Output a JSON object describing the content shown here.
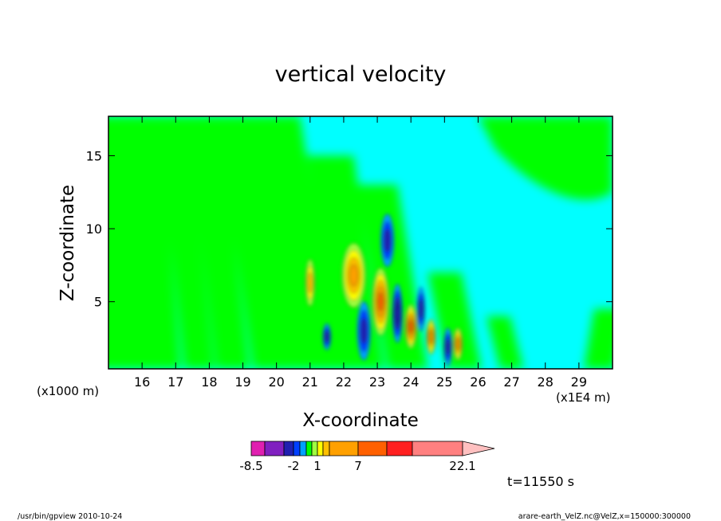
{
  "chart_data": {
    "type": "heatmap",
    "title": "vertical velocity",
    "xlabel": "X-coordinate",
    "ylabel": "Z-coordinate",
    "x_unit_label": "(x1E4 m)",
    "y_unit_label": "(x1000 m)",
    "xlim": [
      15.0,
      30.0
    ],
    "ylim": [
      0.4,
      17.7
    ],
    "x_ticks": [
      16,
      17,
      18,
      19,
      20,
      21,
      22,
      23,
      24,
      25,
      26,
      27,
      28,
      29
    ],
    "y_ticks": [
      5,
      10,
      15
    ],
    "colorbar": {
      "levels": [
        -8.5,
        -6.0,
        -4.0,
        -2.0,
        -1.0,
        -0.5,
        0.5,
        1.0,
        2.0,
        3.0,
        7.0,
        11.0,
        15.0,
        22.1
      ],
      "tick_labels": [
        "-8.5",
        "-2",
        "1",
        "7",
        "22.1"
      ],
      "tick_values": [
        -8.5,
        -2.0,
        1.0,
        7.0,
        22.1
      ],
      "colors": [
        "#e020b0",
        "#8020c0",
        "#2020b0",
        "#0040ff",
        "#00a0ff",
        "#00ff00",
        "#a0ff40",
        "#ffff00",
        "#ffc000",
        "#ffa000",
        "#ff6000",
        "#ff2020",
        "#ff8080",
        "#ffc0c0"
      ]
    },
    "background_color": "#00ffff",
    "features": [
      {
        "kind": "updraft",
        "x": 23.1,
        "z": 5.0,
        "dx": 0.25,
        "dz": 2.3,
        "peak": 7.0
      },
      {
        "kind": "updraft",
        "x": 22.3,
        "z": 6.8,
        "dx": 0.35,
        "dz": 2.2,
        "peak": 4.0
      },
      {
        "kind": "updraft",
        "x": 21.0,
        "z": 6.3,
        "dx": 0.14,
        "dz": 1.6,
        "peak": 2.5
      },
      {
        "kind": "updraft",
        "x": 24.0,
        "z": 3.3,
        "dx": 0.18,
        "dz": 1.5,
        "peak": 7.0
      },
      {
        "kind": "updraft",
        "x": 24.6,
        "z": 2.6,
        "dx": 0.14,
        "dz": 1.2,
        "peak": 3.5
      },
      {
        "kind": "updraft",
        "x": 25.4,
        "z": 2.1,
        "dx": 0.14,
        "dz": 1.1,
        "peak": 3.5
      },
      {
        "kind": "downdraft",
        "x": 23.3,
        "z": 9.2,
        "dx": 0.2,
        "dz": 1.8,
        "peak": -2.0
      },
      {
        "kind": "downdraft",
        "x": 22.6,
        "z": 3.0,
        "dx": 0.2,
        "dz": 2.0,
        "peak": -2.0
      },
      {
        "kind": "downdraft",
        "x": 23.6,
        "z": 4.2,
        "dx": 0.15,
        "dz": 2.0,
        "peak": -4.0
      },
      {
        "kind": "downdraft",
        "x": 24.3,
        "z": 4.5,
        "dx": 0.12,
        "dz": 1.5,
        "peak": -2.0
      },
      {
        "kind": "downdraft",
        "x": 25.1,
        "z": 1.9,
        "dx": 0.12,
        "dz": 1.3,
        "peak": -2.5
      },
      {
        "kind": "downdraft",
        "x": 21.5,
        "z": 2.6,
        "dx": 0.12,
        "dz": 0.9,
        "peak": -2.0
      }
    ]
  },
  "annotations": {
    "time_label": "t=11550 s",
    "footer_left": "/usr/bin/gpview   2010-10-24",
    "footer_right": "arare-earth_VelZ.nc@VelZ,x=150000:300000"
  }
}
